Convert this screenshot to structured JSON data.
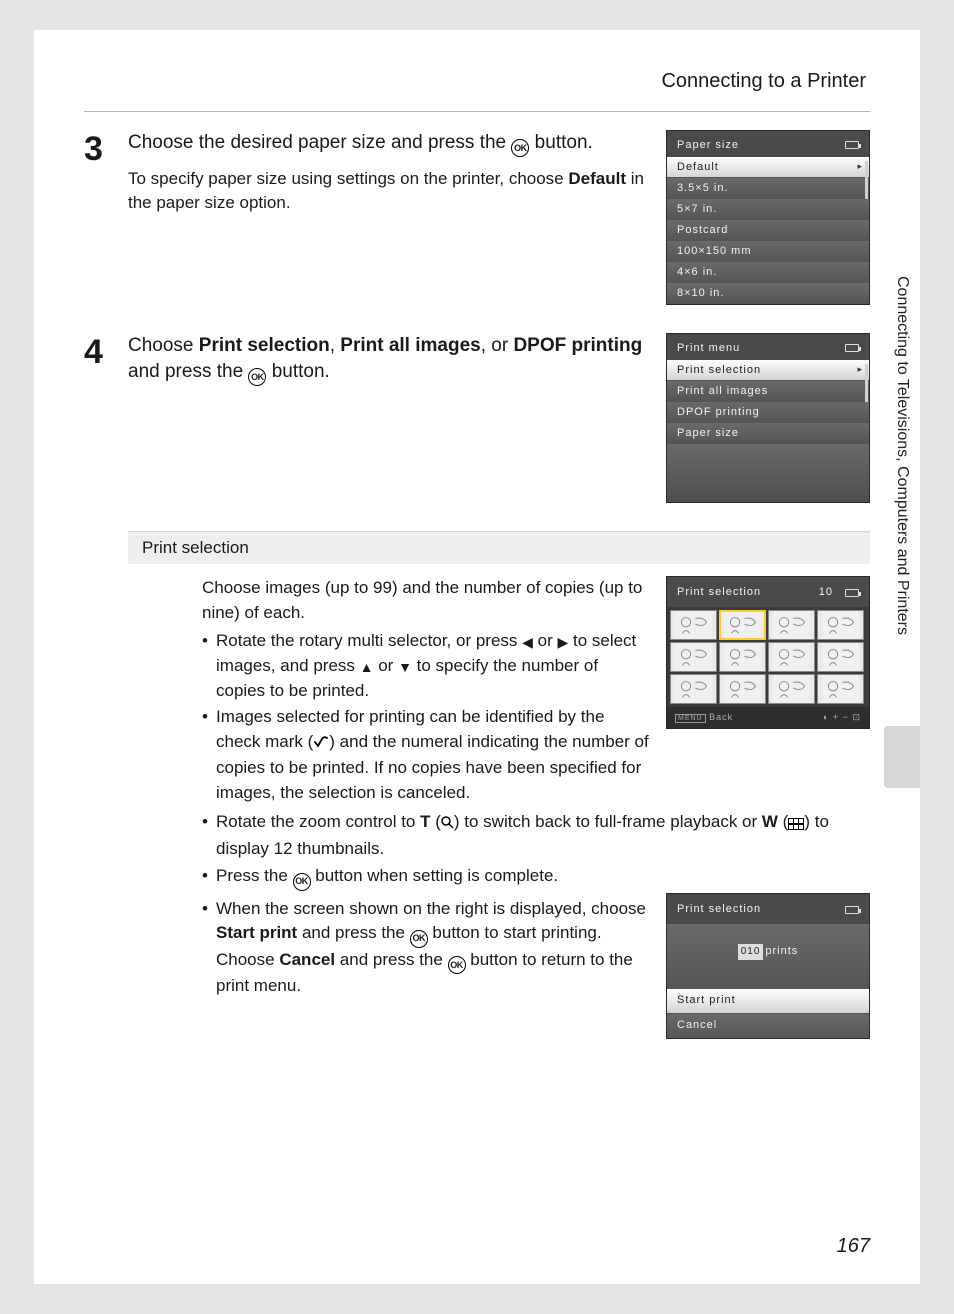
{
  "header": {
    "title": "Connecting to a Printer"
  },
  "sideTab": {
    "label": "Connecting to Televisions, Computers and Printers"
  },
  "pageNumber": "167",
  "step3": {
    "num": "3",
    "title_a": "Choose the desired paper size and press the ",
    "title_b": " button.",
    "desc_a": "To specify paper size using settings on the printer, choose ",
    "desc_bold": "Default",
    "desc_b": " in the paper size option."
  },
  "lcdPaper": {
    "title": "Paper size",
    "items": [
      "Default",
      "3.5×5 in.",
      "5×7 in.",
      "Postcard",
      "100×150 mm",
      "4×6 in.",
      "8×10 in."
    ],
    "selectedIndex": 0
  },
  "step4": {
    "num": "4",
    "pre": "Choose ",
    "b1": "Print selection",
    "sep1": ", ",
    "b2": "Print all images",
    "sep2": ", or ",
    "b3": "DPOF printing",
    "mid": " and press the ",
    "end": " button."
  },
  "lcdMenu": {
    "title": "Print menu",
    "items": [
      "Print selection",
      "Print all images",
      "DPOF printing",
      "Paper size"
    ],
    "selectedIndex": 0
  },
  "sectionBar": "Print selection",
  "subIntro": "Choose images (up to 99) and the number of copies (up to nine) of each.",
  "bullets": {
    "b1a": "Rotate the rotary multi selector, or press ",
    "b1b": " or ",
    "b1c": " to select images, and press ",
    "b1d": " or ",
    "b1e": " to specify the number of copies to be printed.",
    "b2a": "Images selected for printing can be identified by the check mark (",
    "b2b": ") and the numeral indicating the number of copies to be printed. If no copies have been specified for images, the selection is canceled.",
    "b3a": "Rotate the zoom control to ",
    "b3T": "T",
    "b3b": " (",
    "b3c": ") to switch back to full-frame playback or ",
    "b3W": "W",
    "b3d": " (",
    "b3e": ") to display 12 thumbnails.",
    "b4a": "Press the ",
    "b4b": " button when setting is complete.",
    "b5a": "When the screen shown on the right is displayed, choose ",
    "b5bold1": "Start print",
    "b5b": " and press the ",
    "b5c": " button to start printing.",
    "b5d": "Choose ",
    "b5bold2": "Cancel",
    "b5e": " and press the ",
    "b5f": " button to return to the print menu."
  },
  "lcdThumbs": {
    "title": "Print selection",
    "count": "10",
    "footerLeft": "Back",
    "footerRight": ""
  },
  "lcdStart": {
    "title": "Print selection",
    "count": "010",
    "countLabel": "prints",
    "opt1": "Start print",
    "opt2": "Cancel"
  }
}
